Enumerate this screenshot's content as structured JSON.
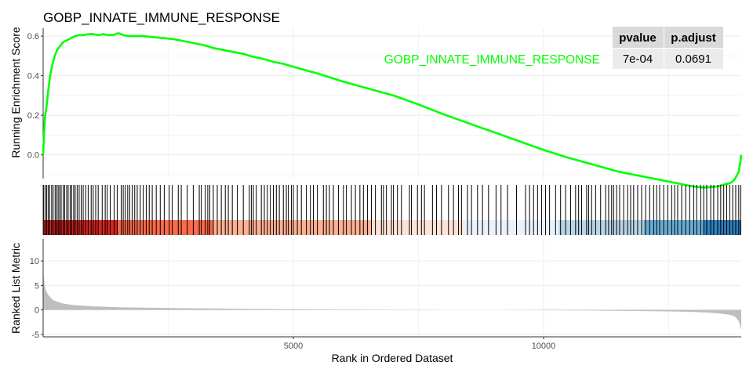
{
  "chart_data": {
    "type": "line",
    "title": "GOBP_INNATE_IMMUNE_RESPONSE",
    "xlabel": "Rank in Ordered Dataset",
    "x_ticks": [
      5000,
      10000
    ],
    "x_tick_labels": [
      "5000",
      "10000"
    ],
    "xlim": [
      0,
      13950
    ],
    "colors": {
      "enrichment_line": "#00ff00",
      "hits": "#000000",
      "metric_fill": "#bebebe",
      "grid": "#ebebeb",
      "table_fill": "#ebebeb",
      "gradient": [
        "#d6231f",
        "#fb6a4a",
        "#fcaf92",
        "#fde2d6",
        "#eaf1fb",
        "#b9d5e6",
        "#6aaed6",
        "#2f7ebc"
      ]
    },
    "enrichment": {
      "ylabel": "Running Enrichment Score",
      "ylim": [
        -0.12,
        0.64
      ],
      "y_ticks": [
        0.0,
        0.2,
        0.4,
        0.6
      ],
      "y_tick_labels": [
        "0.0",
        "0.2",
        "0.4",
        "0.6"
      ],
      "series": [
        {
          "name": "GOBP_INNATE_IMMUNE_RESPONSE",
          "x": [
            0,
            20,
            40,
            70,
            100,
            140,
            180,
            230,
            280,
            340,
            400,
            480,
            560,
            640,
            720,
            800,
            900,
            1000,
            1100,
            1200,
            1300,
            1400,
            1500,
            1600,
            1700,
            1800,
            1900,
            2000,
            2200,
            2400,
            2600,
            2800,
            3000,
            3200,
            3400,
            3600,
            3800,
            4000,
            4200,
            4400,
            4600,
            4800,
            5000,
            5500,
            6000,
            6500,
            7000,
            7500,
            8000,
            8500,
            9000,
            9500,
            10000,
            10500,
            11000,
            11500,
            12000,
            12500,
            12800,
            13000,
            13200,
            13400,
            13500,
            13600,
            13700,
            13750,
            13800,
            13850,
            13900,
            13930,
            13950
          ],
          "y": [
            0.0,
            0.12,
            0.2,
            0.25,
            0.32,
            0.4,
            0.45,
            0.5,
            0.53,
            0.55,
            0.57,
            0.58,
            0.59,
            0.6,
            0.605,
            0.605,
            0.61,
            0.61,
            0.605,
            0.61,
            0.605,
            0.605,
            0.615,
            0.605,
            0.6,
            0.6,
            0.6,
            0.6,
            0.595,
            0.59,
            0.585,
            0.575,
            0.565,
            0.555,
            0.54,
            0.53,
            0.52,
            0.51,
            0.495,
            0.485,
            0.47,
            0.46,
            0.445,
            0.41,
            0.37,
            0.335,
            0.3,
            0.255,
            0.205,
            0.16,
            0.115,
            0.07,
            0.025,
            -0.015,
            -0.05,
            -0.085,
            -0.11,
            -0.135,
            -0.15,
            -0.16,
            -0.165,
            -0.162,
            -0.158,
            -0.15,
            -0.145,
            -0.14,
            -0.13,
            -0.11,
            -0.085,
            -0.04,
            0.0
          ]
        }
      ]
    },
    "hits_positions": [
      10,
      40,
      70,
      100,
      130,
      170,
      200,
      240,
      270,
      300,
      330,
      360,
      400,
      430,
      470,
      500,
      540,
      570,
      610,
      640,
      680,
      720,
      760,
      800,
      850,
      900,
      960,
      1000,
      1050,
      1100,
      1180,
      1240,
      1280,
      1340,
      1420,
      1480,
      1560,
      1600,
      1640,
      1690,
      1730,
      1780,
      1830,
      1880,
      1940,
      2000,
      2060,
      2120,
      2180,
      2260,
      2340,
      2420,
      2520,
      2580,
      2700,
      2760,
      2880,
      3000,
      3120,
      3160,
      3240,
      3290,
      3330,
      3400,
      3480,
      3560,
      3640,
      3700,
      3780,
      3880,
      4000,
      4120,
      4160,
      4200,
      4260,
      4360,
      4420,
      4480,
      4540,
      4600,
      4660,
      4720,
      4800,
      4860,
      4900,
      4960,
      5000,
      5080,
      5160,
      5260,
      5340,
      5400,
      5480,
      5600,
      5660,
      5720,
      5800,
      5900,
      6000,
      6060,
      6160,
      6240,
      6330,
      6400,
      6480,
      6560,
      6640,
      6760,
      6800,
      6860,
      6960,
      7000,
      7080,
      7160,
      7320,
      7360,
      7480,
      7560,
      7620,
      7780,
      7860,
      7960,
      8100,
      8200,
      8300,
      8360,
      8480,
      8560,
      8680,
      8780,
      8900,
      9050,
      9150,
      9280,
      9460,
      9640,
      9720,
      9800,
      9880,
      9960,
      10040,
      10120,
      10240,
      10340,
      10440,
      10540,
      10640,
      10700,
      10760,
      10860,
      10900,
      10960,
      11040,
      11140,
      11240,
      11300,
      11360,
      11400,
      11460,
      11520,
      11600,
      11680,
      11740,
      11800,
      11880,
      11960,
      12040,
      12120,
      12200,
      12260,
      12320,
      12400,
      12480,
      12560,
      12620,
      12680,
      12760,
      12840,
      12920,
      13000,
      13060,
      13140,
      13200,
      13260,
      13340,
      13400,
      13480,
      13540,
      13600,
      13660,
      13720,
      13780,
      13840,
      13900,
      13940
    ],
    "ranked_metric": {
      "ylabel": "Ranked List Metric",
      "ylim": [
        -5.5,
        14.5
      ],
      "y_ticks": [
        -5,
        0,
        5,
        10
      ],
      "y_tick_labels": [
        "-5",
        "0",
        "5",
        "10"
      ],
      "x": [
        0,
        15,
        30,
        60,
        100,
        150,
        200,
        300,
        400,
        600,
        800,
        1000,
        1500,
        2000,
        3000,
        4000,
        5000,
        6000,
        7000,
        8000,
        8800,
        9600,
        10000,
        11000,
        12000,
        12500,
        13000,
        13300,
        13500,
        13700,
        13800,
        13850,
        13900,
        13930,
        13950
      ],
      "values": [
        7.6,
        6.3,
        5.0,
        3.9,
        3.1,
        2.5,
        2.0,
        1.6,
        1.3,
        1.0,
        0.85,
        0.72,
        0.55,
        0.45,
        0.32,
        0.22,
        0.15,
        0.08,
        0.03,
        0.01,
        0.0,
        -0.02,
        -0.06,
        -0.13,
        -0.23,
        -0.3,
        -0.42,
        -0.55,
        -0.7,
        -0.95,
        -1.25,
        -1.6,
        -2.3,
        -3.2,
        -4.2
      ]
    },
    "annotation_table": {
      "headers": [
        "pvalue",
        "p.adjust"
      ],
      "rows": [
        [
          "7e-04",
          "0.0691"
        ]
      ],
      "row_label": "GOBP_INNATE_IMMUNE_RESPONSE"
    },
    "grid": true
  }
}
